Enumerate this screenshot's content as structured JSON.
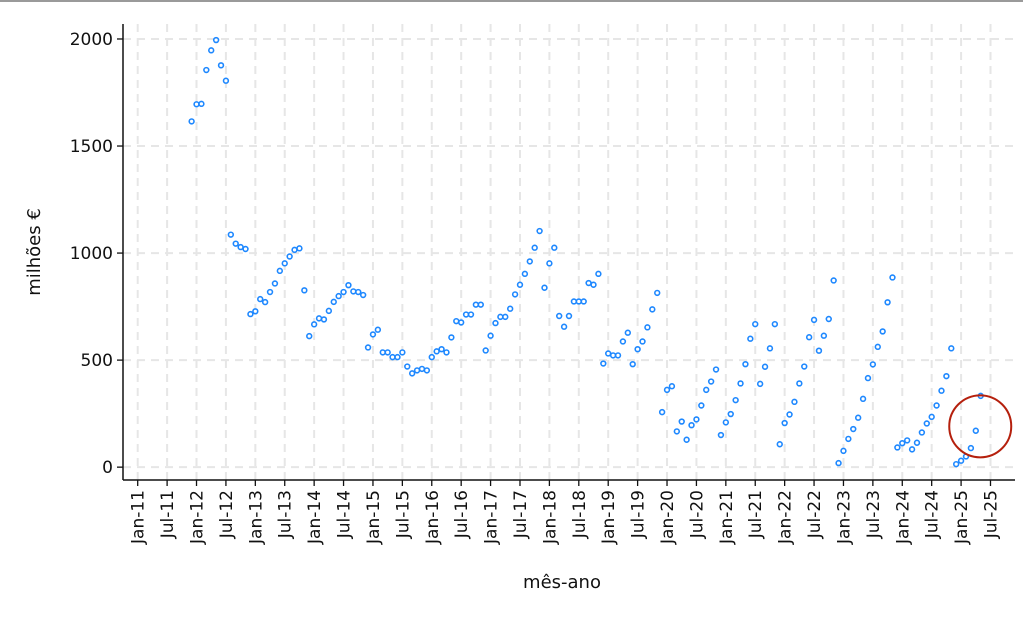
{
  "chart_data": {
    "type": "scatter",
    "xlabel": "mês-ano",
    "ylabel": "milhões €",
    "ylim": [
      -60,
      2070
    ],
    "xlim": [
      "2010-10",
      "2025-12"
    ],
    "yticks": [
      0,
      500,
      1000,
      1500,
      2000
    ],
    "xticks": [
      "Jan-11",
      "Jul-11",
      "Jan-12",
      "Jul-12",
      "Jan-13",
      "Jul-13",
      "Jan-14",
      "Jul-14",
      "Jan-15",
      "Jul-15",
      "Jan-16",
      "Jul-16",
      "Jan-17",
      "Jul-17",
      "Jan-18",
      "Jul-18",
      "Jan-19",
      "Jul-19",
      "Jan-20",
      "Jul-20",
      "Jan-21",
      "Jul-21",
      "Jan-22",
      "Jul-22",
      "Jan-23",
      "Jul-23",
      "Jan-24",
      "Jul-24",
      "Jan-25",
      "Jul-25"
    ],
    "grid": true,
    "marker_color": "#1e88ff",
    "highlight_color": "#b5200d",
    "highlight": {
      "shape": "circle",
      "around": [
        "2025-04",
        "2025-05"
      ]
    },
    "start": "2011-12",
    "y": [
      1615,
      1695,
      1697,
      1855,
      1947,
      1995,
      1877,
      1805,
      1086,
      1044,
      1028,
      1019,
      715,
      728,
      785,
      771,
      818,
      858,
      917,
      952,
      984,
      1015,
      1022,
      826,
      612,
      667,
      695,
      690,
      730,
      772,
      799,
      818,
      850,
      821,
      818,
      804,
      559,
      620,
      642,
      536,
      536,
      514,
      514,
      536,
      470,
      438,
      452,
      459,
      452,
      514,
      541,
      551,
      536,
      606,
      682,
      676,
      713,
      713,
      759,
      759,
      545,
      614,
      673,
      702,
      702,
      740,
      807,
      852,
      903,
      961,
      1025,
      1103,
      838,
      952,
      1025,
      706,
      656,
      706,
      774,
      774,
      774,
      860,
      852,
      903,
      484,
      531,
      522,
      522,
      587,
      628,
      481,
      551,
      587,
      653,
      737,
      814,
      257,
      361,
      378,
      167,
      213,
      128,
      196,
      223,
      288,
      361,
      400,
      456,
      150,
      209,
      248,
      313,
      391,
      481,
      600,
      668,
      389,
      469,
      555,
      668,
      107,
      206,
      246,
      305,
      391,
      470,
      607,
      688,
      544,
      614,
      692,
      872,
      19,
      76,
      132,
      178,
      231,
      319,
      416,
      480,
      562,
      634,
      770,
      886,
      92,
      112,
      125,
      83,
      114,
      162,
      204,
      235,
      288,
      357,
      425,
      555,
      14,
      30,
      50,
      89,
      170,
      333
    ]
  }
}
